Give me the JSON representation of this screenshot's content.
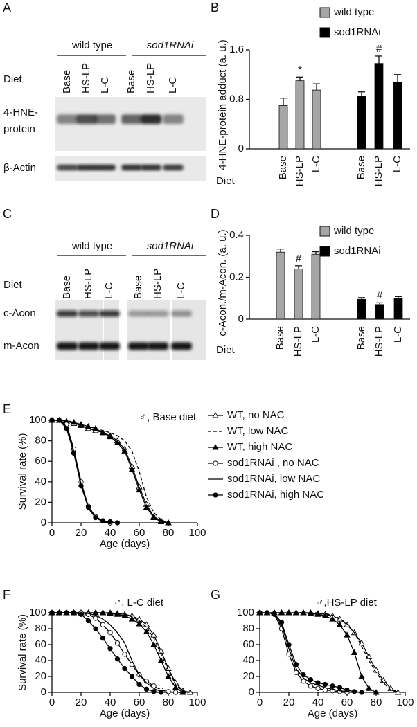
{
  "panel_labels": [
    "A",
    "B",
    "C",
    "D",
    "E",
    "F",
    "G"
  ],
  "blots": [
    {
      "groups": [
        "wild type",
        "sod1RNAi"
      ],
      "row_header": "Diet",
      "lanes": [
        "Base",
        "HS-LP",
        "L-C"
      ],
      "rows": [
        [
          "4-HNE-",
          "protein"
        ],
        [
          "β-Actin"
        ]
      ]
    },
    {
      "groups": [
        "wild type",
        "sod1RNAi"
      ],
      "row_header": "Diet",
      "lanes": [
        "Base",
        "HS-LP",
        "L-C"
      ],
      "rows": [
        [
          "c-Acon"
        ],
        [
          "m-Acon"
        ]
      ]
    }
  ],
  "chart_data": [
    {
      "type": "bar",
      "ylabel": "4-HNE-protein adduct (a. u.)",
      "xlabel": "Diet",
      "categories": [
        "Base",
        "HS-LP",
        "L-C"
      ],
      "series": [
        {
          "name": "wild type",
          "color": "#a6a6a6",
          "values": [
            0.7,
            1.1,
            0.95
          ],
          "errors": [
            0.12,
            0.06,
            0.1
          ]
        },
        {
          "name": "sod1RNAi",
          "color": "#000000",
          "values": [
            0.85,
            1.38,
            1.08
          ],
          "errors": [
            0.07,
            0.12,
            0.12
          ]
        }
      ],
      "annotations": [
        {
          "text": "*",
          "series": 0,
          "index": 1
        },
        {
          "text": "#",
          "series": 1,
          "index": 1
        }
      ],
      "ylim": [
        0,
        1.6
      ],
      "yticks": [
        0,
        0.8,
        1.6
      ]
    },
    {
      "type": "bar",
      "ylabel": "c-Acon./m-Acon. (a. u.)",
      "xlabel": "Diet",
      "categories": [
        "Base",
        "HS-LP",
        "L-C"
      ],
      "series": [
        {
          "name": "wild type",
          "color": "#a6a6a6",
          "values": [
            0.32,
            0.24,
            0.31
          ],
          "errors": [
            0.015,
            0.015,
            0.012
          ]
        },
        {
          "name": "sod1RNAi",
          "color": "#000000",
          "values": [
            0.095,
            0.07,
            0.1
          ],
          "errors": [
            0.008,
            0.008,
            0.008
          ]
        }
      ],
      "annotations": [
        {
          "text": "#",
          "series": 0,
          "index": 1
        },
        {
          "text": "#",
          "series": 1,
          "index": 1
        }
      ],
      "ylim": [
        0,
        0.4
      ],
      "yticks": [
        0,
        0.2,
        0.4
      ]
    },
    {
      "type": "line",
      "title": "♂, Base diet",
      "xlabel": "Age (days)",
      "ylabel": "Survival rate (%)",
      "x": [
        0,
        5,
        10,
        15,
        20,
        25,
        30,
        35,
        40,
        45,
        50,
        55,
        60,
        65,
        70,
        75,
        80,
        85,
        90,
        95
      ],
      "series": [
        {
          "name": "WT, no NAC",
          "color": "#000000",
          "marker": "triangle",
          "marker_fill": "#ffffff",
          "dashed": false,
          "values": [
            100,
            100,
            99,
            97,
            95,
            92,
            90,
            88,
            85,
            80,
            72,
            55,
            35,
            18,
            6,
            2,
            0,
            null,
            null,
            null
          ]
        },
        {
          "name": "WT, low NAC",
          "color": "#000000",
          "marker": null,
          "marker_fill": null,
          "dashed": true,
          "values": [
            100,
            100,
            100,
            98,
            96,
            94,
            92,
            90,
            88,
            85,
            80,
            70,
            50,
            25,
            10,
            3,
            0,
            null,
            null,
            null
          ]
        },
        {
          "name": "WT, high NAC",
          "color": "#000000",
          "marker": "triangle",
          "marker_fill": "#000000",
          "dashed": false,
          "values": [
            100,
            100,
            99,
            98,
            96,
            94,
            92,
            88,
            84,
            78,
            70,
            52,
            32,
            15,
            5,
            1,
            0,
            null,
            null,
            null
          ]
        },
        {
          "name": "sod1RNAi , no NAC",
          "color": "#000000",
          "marker": "circle",
          "marker_fill": "#ffffff",
          "dashed": false,
          "values": [
            100,
            100,
            96,
            72,
            40,
            16,
            6,
            2,
            0,
            null,
            null,
            null,
            null,
            null,
            null,
            null,
            null,
            null,
            null,
            null
          ]
        },
        {
          "name": "sod1RNAi, low NAC",
          "color": "#000000",
          "marker": null,
          "marker_fill": null,
          "dashed": false,
          "values": [
            100,
            100,
            94,
            70,
            38,
            14,
            5,
            1,
            0,
            null,
            null,
            null,
            null,
            null,
            null,
            null,
            null,
            null,
            null,
            null
          ]
        },
        {
          "name": "sod1RNAi, high NAC",
          "color": "#000000",
          "marker": "circle",
          "marker_fill": "#000000",
          "dashed": false,
          "values": [
            100,
            100,
            92,
            68,
            36,
            15,
            5,
            2,
            1,
            0,
            null,
            null,
            null,
            null,
            null,
            null,
            null,
            null,
            null,
            null
          ]
        }
      ],
      "xlim": [
        0,
        100
      ],
      "xticks": [
        0,
        20,
        40,
        60,
        80,
        100
      ],
      "ylim": [
        0,
        100
      ],
      "yticks": [
        0,
        20,
        40,
        60,
        80,
        100
      ]
    },
    {
      "type": "line",
      "title": "♂, L-C diet",
      "xlabel": "Age (days)",
      "ylabel": "Survival rate (%)",
      "x": [
        0,
        5,
        10,
        15,
        20,
        25,
        30,
        35,
        40,
        45,
        50,
        55,
        60,
        65,
        70,
        75,
        80,
        85,
        90,
        95
      ],
      "series": [
        {
          "color": "#000000",
          "marker": "triangle",
          "marker_fill": "#ffffff",
          "dashed": false,
          "values": [
            100,
            100,
            100,
            100,
            100,
            100,
            100,
            100,
            100,
            99,
            98,
            96,
            92,
            85,
            72,
            52,
            30,
            12,
            2,
            0
          ]
        },
        {
          "color": "#000000",
          "marker": null,
          "marker_fill": null,
          "dashed": true,
          "values": [
            100,
            100,
            100,
            100,
            100,
            100,
            100,
            100,
            100,
            99,
            98,
            95,
            90,
            82,
            68,
            48,
            28,
            10,
            1,
            0
          ]
        },
        {
          "color": "#000000",
          "marker": "triangle",
          "marker_fill": "#000000",
          "dashed": false,
          "values": [
            100,
            100,
            100,
            100,
            100,
            100,
            100,
            100,
            99,
            98,
            96,
            92,
            86,
            76,
            60,
            40,
            20,
            6,
            0,
            null
          ]
        },
        {
          "color": "#000000",
          "marker": "circle",
          "marker_fill": "#ffffff",
          "dashed": false,
          "values": [
            100,
            100,
            100,
            100,
            100,
            98,
            93,
            85,
            75,
            62,
            48,
            35,
            22,
            14,
            8,
            3,
            1,
            0,
            null,
            null
          ]
        },
        {
          "color": "#000000",
          "marker": null,
          "marker_fill": null,
          "dashed": false,
          "values": [
            100,
            100,
            100,
            100,
            100,
            99,
            97,
            92,
            85,
            75,
            62,
            40,
            22,
            12,
            5,
            1,
            0,
            null,
            null,
            null
          ]
        },
        {
          "color": "#000000",
          "marker": "circle",
          "marker_fill": "#000000",
          "dashed": false,
          "values": [
            100,
            100,
            100,
            100,
            98,
            90,
            80,
            68,
            55,
            42,
            30,
            20,
            10,
            4,
            1,
            0,
            null,
            null,
            null,
            null
          ]
        }
      ],
      "xlim": [
        0,
        100
      ],
      "xticks": [
        0,
        20,
        40,
        60,
        80,
        100
      ],
      "ylim": [
        0,
        100
      ],
      "yticks": [
        0,
        20,
        40,
        60,
        80,
        100
      ]
    },
    {
      "type": "line",
      "title": "♂,HS-LP diet",
      "xlabel": "Age (days)",
      "x": [
        0,
        5,
        10,
        15,
        20,
        25,
        30,
        35,
        40,
        45,
        50,
        55,
        60,
        65,
        70,
        75,
        80,
        85,
        90,
        95
      ],
      "series": [
        {
          "color": "#000000",
          "marker": "triangle",
          "marker_fill": "#ffffff",
          "dashed": false,
          "values": [
            100,
            100,
            100,
            100,
            100,
            100,
            100,
            100,
            99,
            98,
            96,
            92,
            85,
            75,
            62,
            45,
            28,
            15,
            5,
            0
          ]
        },
        {
          "color": "#000000",
          "marker": null,
          "marker_fill": null,
          "dashed": true,
          "values": [
            100,
            100,
            100,
            100,
            100,
            100,
            100,
            100,
            100,
            99,
            97,
            93,
            86,
            75,
            58,
            40,
            25,
            12,
            3,
            0
          ]
        },
        {
          "color": "#000000",
          "marker": "triangle",
          "marker_fill": "#000000",
          "dashed": false,
          "values": [
            100,
            100,
            100,
            100,
            100,
            100,
            100,
            99,
            98,
            96,
            92,
            85,
            72,
            50,
            20,
            5,
            0,
            null,
            null,
            null
          ]
        },
        {
          "color": "#000000",
          "marker": "circle",
          "marker_fill": "#ffffff",
          "dashed": false,
          "values": [
            100,
            100,
            98,
            80,
            48,
            25,
            14,
            8,
            5,
            3,
            2,
            1,
            0,
            null,
            null,
            null,
            null,
            null,
            null,
            null
          ]
        },
        {
          "color": "#000000",
          "marker": null,
          "marker_fill": null,
          "dashed": false,
          "values": [
            100,
            100,
            99,
            85,
            55,
            30,
            18,
            12,
            9,
            6,
            4,
            2,
            1,
            0,
            null,
            null,
            null,
            null,
            null,
            null
          ]
        },
        {
          "color": "#000000",
          "marker": "circle",
          "marker_fill": "#000000",
          "dashed": false,
          "values": [
            100,
            100,
            99,
            88,
            60,
            35,
            22,
            16,
            12,
            10,
            8,
            6,
            3,
            1,
            0,
            null,
            null,
            null,
            null,
            null
          ]
        }
      ],
      "xlim": [
        0,
        100
      ],
      "xticks": [
        0,
        20,
        40,
        60,
        80,
        100
      ],
      "ylim": [
        0,
        100
      ],
      "yticks": [
        0,
        20,
        40,
        60,
        80,
        100
      ]
    }
  ]
}
